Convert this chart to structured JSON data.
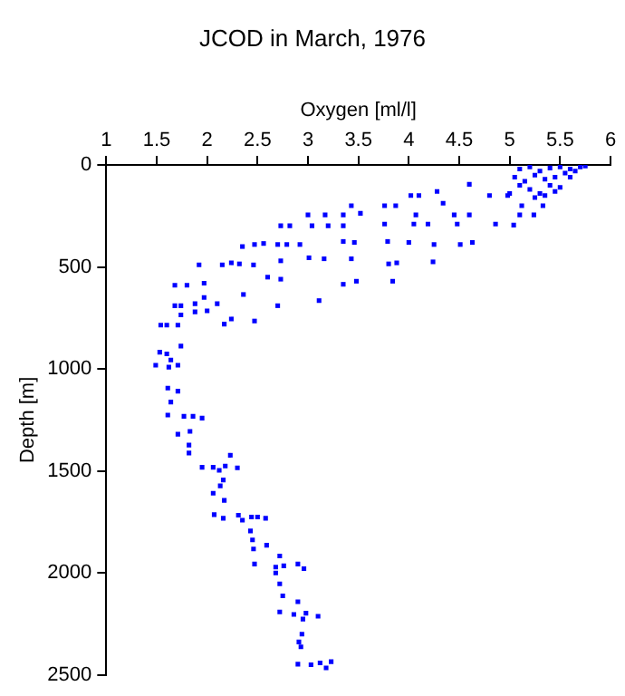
{
  "chart_data": {
    "type": "scatter",
    "title": "JCOD in March, 1976",
    "xlabel": "Oxygen [ml/l]",
    "ylabel": "Depth [m]",
    "x": [
      5.1,
      5.2,
      5.3,
      5.4,
      5.5,
      5.6,
      5.7,
      5.75,
      5.05,
      5.15,
      5.25,
      5.35,
      5.45,
      5.55,
      5.65,
      5.2,
      5.4,
      5.5,
      5.3,
      5.0,
      5.1,
      5.6,
      5.35,
      5.45,
      5.25,
      4.6,
      4.28,
      4.1,
      4.02,
      4.8,
      4.98,
      5.12,
      5.33,
      5.24,
      5.1,
      4.34,
      4.45,
      4.6,
      4.07,
      3.43,
      3.52,
      3.76,
      3.87,
      3.0,
      3.17,
      3.35,
      2.73,
      2.82,
      3.04,
      3.2,
      3.35,
      3.76,
      4.05,
      4.19,
      4.48,
      4.86,
      5.04,
      2.35,
      2.47,
      2.56,
      2.7,
      2.79,
      2.92,
      3.35,
      3.46,
      3.79,
      4.0,
      4.25,
      4.51,
      4.63,
      1.92,
      2.15,
      2.24,
      2.32,
      2.46,
      2.73,
      3.01,
      3.16,
      3.43,
      3.8,
      3.88,
      4.24,
      1.68,
      1.8,
      1.97,
      2.6,
      2.73,
      3.35,
      3.48,
      3.84,
      1.97,
      2.36,
      1.68,
      1.74,
      1.88,
      2.1,
      2.7,
      3.11,
      1.74,
      1.88,
      2.0,
      2.24,
      2.17,
      2.47,
      1.6,
      1.71,
      1.54,
      1.74,
      1.53,
      1.6,
      1.64,
      1.49,
      1.62,
      1.71,
      1.61,
      1.71,
      1.64,
      1.61,
      1.77,
      1.86,
      1.95,
      1.71,
      1.83,
      1.82,
      1.82,
      2.23,
      1.95,
      2.06,
      2.12,
      2.18,
      2.3,
      2.16,
      2.13,
      2.06,
      2.17,
      2.07,
      2.16,
      2.31,
      2.35,
      2.44,
      2.5,
      2.58,
      2.43,
      2.45,
      2.46,
      2.59,
      2.72,
      2.47,
      2.68,
      2.76,
      2.9,
      2.96,
      2.68,
      2.72,
      2.75,
      2.9,
      2.72,
      2.86,
      2.98,
      2.95,
      3.1,
      2.94,
      2.91,
      2.93,
      2.9,
      3.03,
      3.12,
      3.18,
      3.23
    ],
    "values": [
      20,
      10,
      30,
      15,
      10,
      20,
      10,
      5,
      60,
      80,
      50,
      70,
      60,
      40,
      30,
      120,
      100,
      110,
      140,
      140,
      100,
      60,
      150,
      130,
      160,
      95,
      130,
      150,
      150,
      150,
      150,
      200,
      200,
      245,
      245,
      188,
      245,
      245,
      245,
      200,
      237,
      200,
      200,
      245,
      245,
      245,
      298,
      298,
      298,
      298,
      298,
      290,
      290,
      290,
      290,
      290,
      295,
      400,
      390,
      385,
      390,
      390,
      390,
      375,
      380,
      375,
      380,
      390,
      390,
      380,
      490,
      490,
      480,
      485,
      490,
      470,
      455,
      460,
      460,
      485,
      480,
      475,
      590,
      590,
      580,
      550,
      560,
      585,
      570,
      570,
      650,
      635,
      690,
      690,
      680,
      680,
      690,
      665,
      735,
      720,
      715,
      755,
      780,
      765,
      785,
      785,
      785,
      888,
      918,
      926,
      956,
      982,
      991,
      982,
      1094,
      1109,
      1162,
      1226,
      1232,
      1232,
      1241,
      1320,
      1306,
      1373,
      1412,
      1423,
      1482,
      1482,
      1497,
      1476,
      1485,
      1544,
      1573,
      1609,
      1644,
      1714,
      1732,
      1717,
      1741,
      1726,
      1726,
      1732,
      1794,
      1838,
      1882,
      1864,
      1917,
      1956,
      1971,
      1965,
      1956,
      1979,
      2000,
      2053,
      2112,
      2141,
      2191,
      2203,
      2197,
      2226,
      2212,
      2300,
      2338,
      2362,
      2447,
      2450,
      2441,
      2465,
      2435
    ],
    "color": "#0000ff",
    "marker": "square",
    "xlim": [
      1,
      6
    ],
    "xticks": [
      1,
      1.5,
      2,
      2.5,
      3,
      3.5,
      4,
      4.5,
      5,
      5.5,
      6
    ],
    "ylim": [
      2500,
      0
    ],
    "yticks": [
      0,
      500,
      1000,
      1500,
      2000,
      2500
    ],
    "grid": false,
    "legend": false
  }
}
